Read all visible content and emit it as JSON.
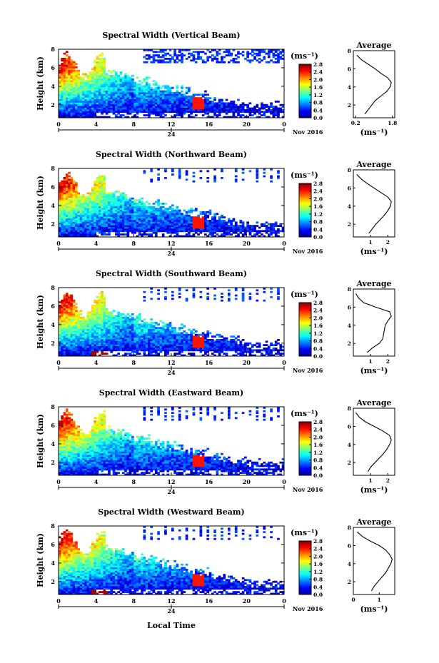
{
  "figure": {
    "xlabel_bottom": "Local Time",
    "date_label": "Nov 2016",
    "day_label": "24"
  },
  "chart_data": [
    {
      "type": "heatmap",
      "title": "Spectral Width (Vertical Beam)",
      "ylabel": "Height (km)",
      "colorbar_label": "(ms⁻¹)",
      "colorbar_ticks": [
        "2.8",
        "2.4",
        "2.0",
        "1.6",
        "1.2",
        "0.8",
        "0.4",
        "0.0"
      ],
      "clim": [
        0.0,
        2.8
      ],
      "xlim": [
        0,
        24
      ],
      "xticks": [
        "0",
        "4",
        "8",
        "12",
        "16",
        "20",
        "0"
      ],
      "yticks": [
        "8",
        "6",
        "4",
        "2"
      ],
      "ylim": [
        0.6,
        8.0
      ],
      "profile": {
        "title": "Average",
        "xlabel": "(ms⁻¹)",
        "xticks": [
          "0.2",
          "1.8"
        ],
        "xlim": [
          0.1,
          1.9
        ],
        "yticks": [
          "8",
          "6",
          "4",
          "2"
        ],
        "ylim": [
          0.6,
          8.0
        ],
        "height": [
          1.0,
          1.5,
          2.0,
          2.5,
          3.0,
          3.5,
          4.0,
          4.5,
          5.0,
          5.5,
          6.0,
          6.5,
          7.0,
          7.5
        ],
        "width": [
          0.6,
          0.75,
          0.9,
          1.05,
          1.3,
          1.55,
          1.7,
          1.75,
          1.6,
          1.3,
          1.05,
          0.75,
          0.45,
          0.25
        ]
      }
    },
    {
      "type": "heatmap",
      "title": "Spectral Width (Northward Beam)",
      "ylabel": "Height (km)",
      "colorbar_label": "(ms⁻¹)",
      "colorbar_ticks": [
        "2.8",
        "2.4",
        "2.0",
        "1.6",
        "1.2",
        "0.8",
        "0.4",
        "0.0"
      ],
      "clim": [
        0.0,
        2.8
      ],
      "xlim": [
        0,
        24
      ],
      "xticks": [
        "0",
        "4",
        "8",
        "12",
        "16",
        "20",
        "0"
      ],
      "yticks": [
        "8",
        "6",
        "4",
        "2"
      ],
      "ylim": [
        0.6,
        8.0
      ],
      "profile": {
        "title": "Average",
        "xlabel": "(ms⁻¹)",
        "xticks": [
          "1",
          "2"
        ],
        "xlim": [
          0,
          2.4
        ],
        "yticks": [
          "8",
          "6",
          "4",
          "2"
        ],
        "ylim": [
          0.6,
          8.0
        ],
        "height": [
          1.0,
          1.5,
          2.0,
          2.5,
          3.0,
          3.5,
          4.0,
          4.5,
          5.0,
          5.5,
          6.0,
          6.5,
          7.0,
          7.5
        ],
        "width": [
          0.9,
          1.1,
          1.3,
          1.55,
          1.8,
          2.0,
          2.15,
          2.2,
          2.0,
          1.6,
          1.2,
          0.8,
          0.45,
          0.2
        ]
      }
    },
    {
      "type": "heatmap",
      "title": "Spectral Width (Southward Beam)",
      "ylabel": "Height (km)",
      "colorbar_label": "(ms⁻¹)",
      "colorbar_ticks": [
        "2.8",
        "2.4",
        "2.0",
        "1.6",
        "1.2",
        "0.8",
        "0.4",
        "0.0"
      ],
      "clim": [
        0.0,
        2.8
      ],
      "xlim": [
        0,
        24
      ],
      "xticks": [
        "0",
        "4",
        "8",
        "12",
        "16",
        "20",
        "0"
      ],
      "yticks": [
        "8",
        "6",
        "4",
        "2"
      ],
      "ylim": [
        0.6,
        8.0
      ],
      "profile": {
        "title": "Average",
        "xlabel": "(ms⁻¹)",
        "xticks": [
          "1",
          "2"
        ],
        "xlim": [
          0,
          2.4
        ],
        "yticks": [
          "8",
          "6",
          "4",
          "2"
        ],
        "ylim": [
          0.6,
          8.0
        ],
        "height": [
          1.0,
          1.5,
          2.0,
          2.5,
          3.0,
          3.5,
          4.0,
          4.5,
          5.0,
          5.5,
          6.0,
          6.5,
          7.0,
          7.5
        ],
        "width": [
          0.8,
          1.1,
          1.5,
          1.7,
          1.75,
          1.8,
          1.85,
          2.0,
          2.2,
          2.1,
          1.3,
          0.6,
          0.3,
          0.15
        ]
      }
    },
    {
      "type": "heatmap",
      "title": "Spectral Width (Eastward Beam)",
      "ylabel": "Height (km)",
      "colorbar_label": "(ms⁻¹)",
      "colorbar_ticks": [
        "2.8",
        "2.4",
        "2.0",
        "1.6",
        "1.2",
        "0.8",
        "0.4",
        "0.0"
      ],
      "clim": [
        0.0,
        2.8
      ],
      "xlim": [
        0,
        24
      ],
      "xticks": [
        "0",
        "4",
        "8",
        "12",
        "16",
        "20",
        "0"
      ],
      "yticks": [
        "8",
        "6",
        "4",
        "2"
      ],
      "ylim": [
        0.6,
        8.0
      ],
      "profile": {
        "title": "Average",
        "xlabel": "(ms⁻¹)",
        "xticks": [
          "1",
          "2"
        ],
        "xlim": [
          0,
          2.4
        ],
        "yticks": [
          "8",
          "6",
          "4",
          "2"
        ],
        "ylim": [
          0.6,
          8.0
        ],
        "height": [
          1.0,
          1.5,
          2.0,
          2.5,
          3.0,
          3.5,
          4.0,
          4.5,
          5.0,
          5.5,
          6.0,
          6.5,
          7.0,
          7.5
        ],
        "width": [
          0.85,
          1.0,
          1.25,
          1.5,
          1.75,
          1.95,
          2.1,
          2.2,
          2.1,
          1.7,
          1.2,
          0.7,
          0.35,
          0.15
        ]
      }
    },
    {
      "type": "heatmap",
      "title": "Spectral Width (Westward Beam)",
      "ylabel": "Height (km)",
      "colorbar_label": "(ms⁻¹)",
      "colorbar_ticks": [
        "2.8",
        "2.4",
        "2.0",
        "1.6",
        "1.2",
        "0.8",
        "0.4",
        "0.0"
      ],
      "clim": [
        0.0,
        2.8
      ],
      "xlim": [
        0,
        24
      ],
      "xticks": [
        "0",
        "4",
        "8",
        "12",
        "16",
        "20",
        "0"
      ],
      "yticks": [
        "8",
        "6",
        "4",
        "2"
      ],
      "ylim": [
        0.6,
        8.0
      ],
      "profile": {
        "title": "Average",
        "xlabel": "(ms⁻¹)",
        "xticks": [
          "0",
          "1"
        ],
        "xlim": [
          0,
          1.6
        ],
        "yticks": [
          "8",
          "6",
          "4",
          "2"
        ],
        "ylim": [
          0.6,
          8.0
        ],
        "height": [
          1.0,
          1.5,
          2.0,
          2.5,
          3.0,
          3.5,
          4.0,
          4.5,
          5.0,
          5.5,
          6.0,
          6.5,
          7.0,
          7.5
        ],
        "width": [
          0.7,
          0.8,
          0.95,
          1.1,
          1.25,
          1.35,
          1.45,
          1.5,
          1.4,
          1.25,
          1.0,
          0.65,
          0.35,
          0.15
        ]
      }
    }
  ]
}
